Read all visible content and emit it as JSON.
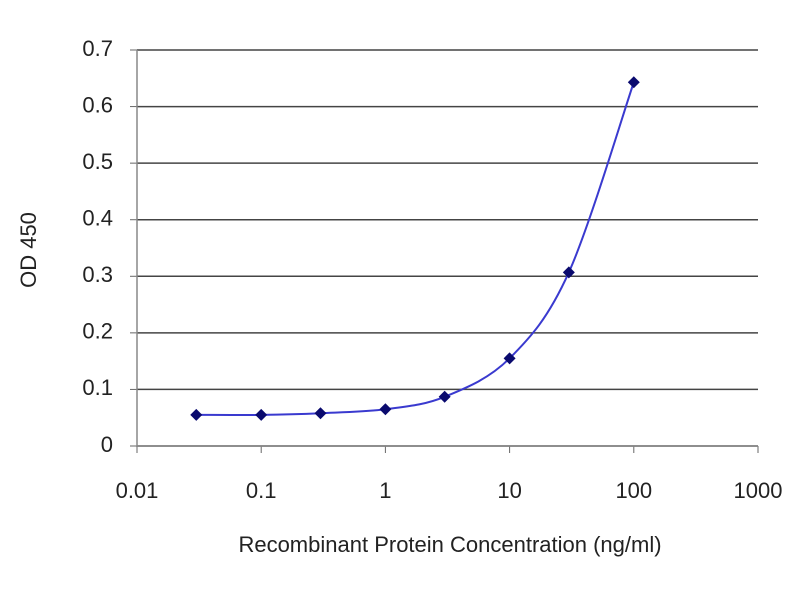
{
  "chart_data": {
    "type": "line",
    "x_label": "Recombinant Protein Concentration (ng/ml)",
    "y_label": "OD 450",
    "x": [
      0.03,
      0.1,
      0.3,
      1,
      3,
      10,
      30,
      100
    ],
    "series": [
      {
        "name": "OD 450",
        "color": "#3a3acf",
        "marker_color": "#0a0a6e",
        "values": [
          0.055,
          0.055,
          0.058,
          0.065,
          0.087,
          0.155,
          0.307,
          0.643
        ]
      }
    ],
    "xscale": "log",
    "xlim": [
      0.01,
      1000
    ],
    "xticks": [
      0.01,
      0.1,
      1,
      10,
      100,
      1000
    ],
    "ylim": [
      0,
      0.7
    ],
    "yticks": [
      0,
      0.1,
      0.2,
      0.3,
      0.4,
      0.5,
      0.6,
      0.7
    ],
    "grid": true
  }
}
